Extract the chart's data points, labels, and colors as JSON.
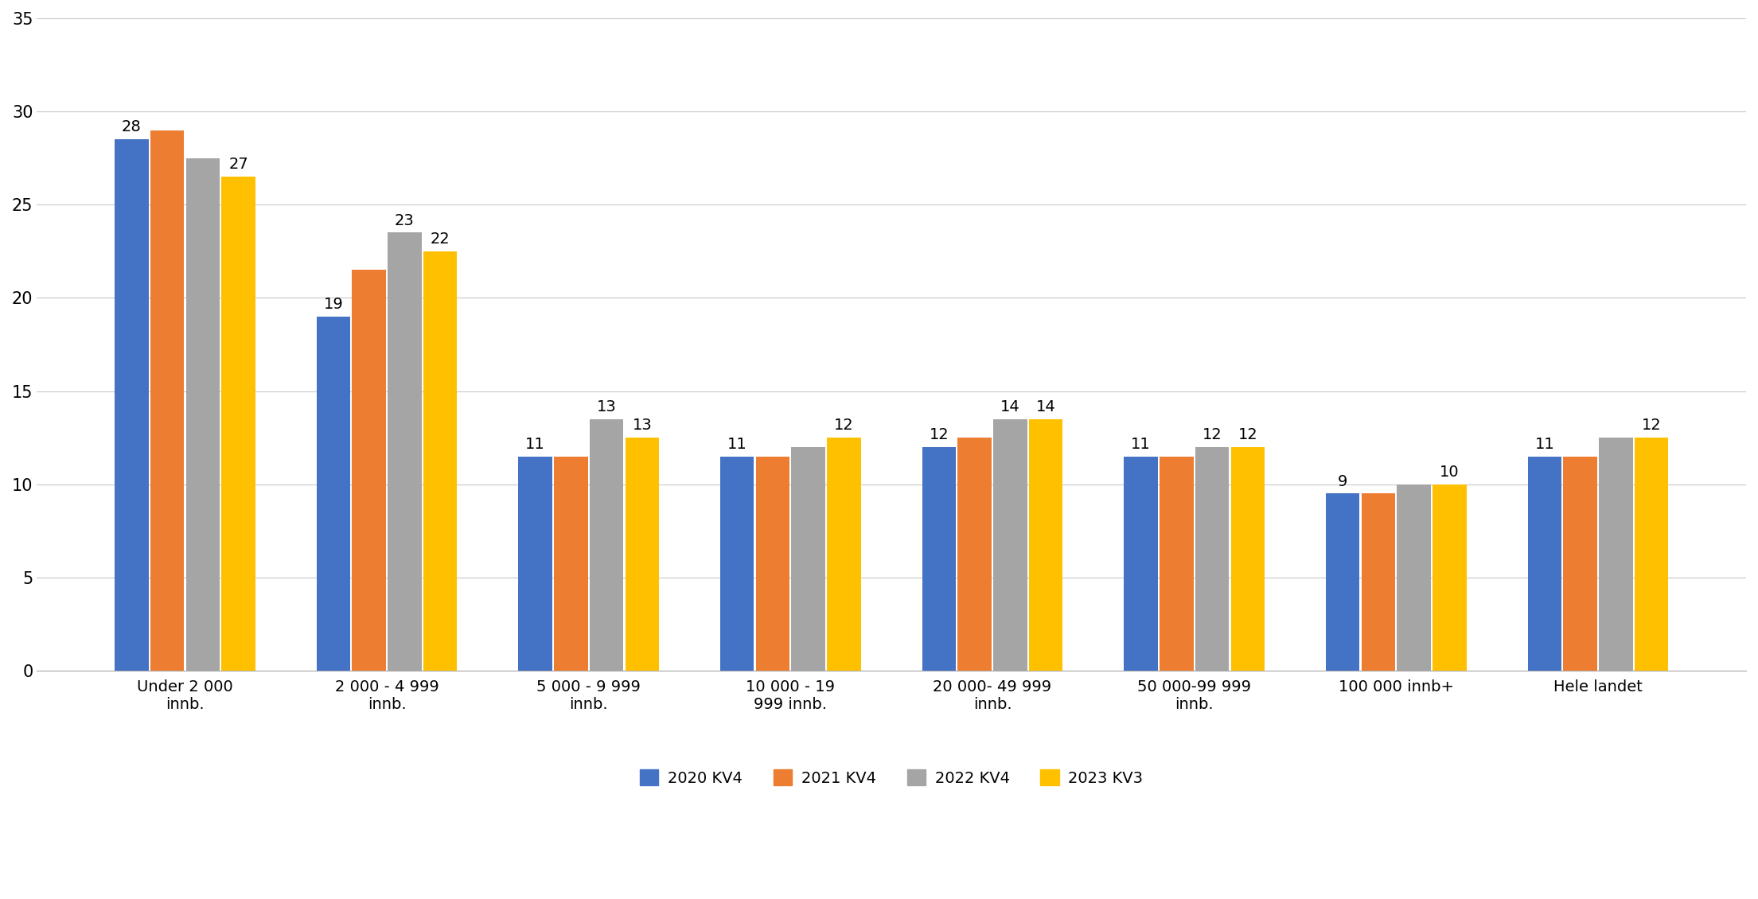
{
  "categories": [
    "Under 2 000\ninnb.",
    "2 000 - 4 999\ninnb.",
    "5 000 - 9 999\ninnb.",
    "10 000 - 19\n999 innb.",
    "20 000- 49 999\ninnb.",
    "50 000-99 999\ninnb.",
    "100 000 innb+",
    "Hele landet"
  ],
  "colors": {
    "2020 KV4": "#4472C4",
    "2021 KV4": "#ED7D31",
    "2022 KV4": "#A5A5A5",
    "2023 KV3": "#FFC000"
  },
  "ylim": [
    0,
    35
  ],
  "yticks": [
    0,
    5,
    10,
    15,
    20,
    25,
    30,
    35
  ],
  "plot_heights": {
    "2020 KV4": [
      28.5,
      19,
      11.5,
      11.5,
      12,
      11.5,
      9.5,
      11.5
    ],
    "2021 KV4": [
      29,
      21.5,
      11.5,
      11.5,
      12.5,
      11.5,
      9.5,
      11.5
    ],
    "2022 KV4": [
      27.5,
      23.5,
      13.5,
      12,
      13.5,
      12,
      10,
      12.5
    ],
    "2023 KV3": [
      26.5,
      22.5,
      12.5,
      12.5,
      13.5,
      12,
      10,
      12.5
    ]
  },
  "label_values": {
    "2020 KV4": [
      28,
      19,
      11,
      11,
      12,
      11,
      9,
      11
    ],
    "2021 KV4": [
      29,
      21,
      11,
      11,
      12,
      11,
      9,
      11
    ],
    "2022 KV4": [
      27,
      23,
      13,
      12,
      14,
      12,
      10,
      13
    ],
    "2023 KV3": [
      27,
      22,
      13,
      12,
      14,
      12,
      10,
      12
    ]
  },
  "show_label": {
    "2020 KV4": [
      true,
      true,
      true,
      true,
      true,
      true,
      true,
      true
    ],
    "2021 KV4": [
      false,
      false,
      false,
      false,
      false,
      false,
      false,
      false
    ],
    "2022 KV4": [
      false,
      true,
      true,
      false,
      true,
      true,
      false,
      false
    ],
    "2023 KV3": [
      true,
      true,
      true,
      true,
      true,
      true,
      true,
      true
    ]
  },
  "background_color": "#FFFFFF",
  "grid_color": "#C8C8C8",
  "legend_order": [
    "2020 KV4",
    "2021 KV4",
    "2022 KV4",
    "2023 KV3"
  ]
}
